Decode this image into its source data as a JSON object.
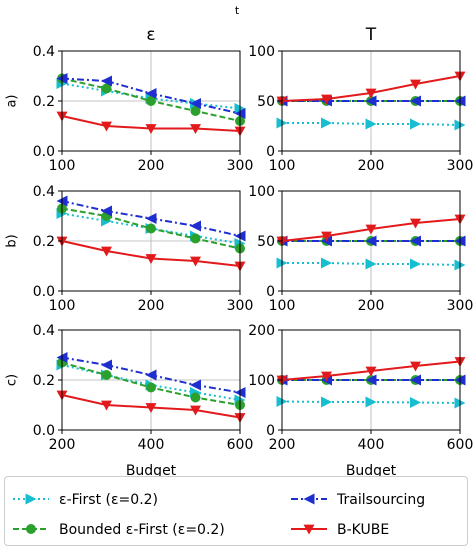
{
  "figure": {
    "top_label": "t",
    "column_titles": [
      "ε",
      "T"
    ],
    "row_labels": [
      "a)",
      "b)",
      "c)"
    ],
    "xlabel": "Budget"
  },
  "legend": {
    "entries": [
      {
        "label": "ε-First (ε=0.2)",
        "color": "#17becf",
        "marker": "triangle-right",
        "linestyle": "dotted"
      },
      {
        "label": "Trailsourcing",
        "color": "#1f2fcf",
        "marker": "triangle-left",
        "linestyle": "dashdot"
      },
      {
        "label": "Bounded ε-First (ε=0.2)",
        "color": "#2ca02c",
        "marker": "circle",
        "linestyle": "dashed"
      },
      {
        "label": "B-KUBE",
        "color": "#e31a1c",
        "marker": "triangle-down",
        "linestyle": "solid"
      }
    ]
  },
  "chart_data": [
    {
      "id": "a-eps",
      "type": "line",
      "row": 0,
      "col": 0,
      "x": [
        100,
        150,
        200,
        250,
        300
      ],
      "xlim": [
        100,
        300
      ],
      "xticks": [
        100,
        200,
        300
      ],
      "ylim": [
        0,
        0.4
      ],
      "yticks": [
        0.0,
        0.2,
        0.4
      ],
      "ytick_labels": [
        "0.0",
        "0.2",
        "0.4"
      ],
      "grid": true,
      "series": [
        {
          "name": "ε-First (ε=0.2)",
          "values": [
            0.27,
            0.24,
            0.21,
            0.19,
            0.17
          ]
        },
        {
          "name": "Bounded ε-First (ε=0.2)",
          "values": [
            0.29,
            0.25,
            0.2,
            0.16,
            0.12
          ]
        },
        {
          "name": "Trailsourcing",
          "values": [
            0.29,
            0.28,
            0.23,
            0.19,
            0.15
          ]
        },
        {
          "name": "B-KUBE",
          "values": [
            0.14,
            0.1,
            0.09,
            0.09,
            0.08
          ]
        }
      ]
    },
    {
      "id": "a-T",
      "type": "line",
      "row": 0,
      "col": 1,
      "x": [
        100,
        150,
        200,
        250,
        300
      ],
      "xlim": [
        100,
        300
      ],
      "xticks": [
        100,
        200,
        300
      ],
      "ylim": [
        0,
        100
      ],
      "yticks": [
        0,
        50,
        100
      ],
      "ytick_labels": [
        "0",
        "50",
        "100"
      ],
      "grid": true,
      "series": [
        {
          "name": "ε-First (ε=0.2)",
          "values": [
            28,
            28,
            27,
            27,
            26
          ]
        },
        {
          "name": "Bounded ε-First (ε=0.2)",
          "values": [
            50,
            50,
            50,
            50,
            50
          ]
        },
        {
          "name": "Trailsourcing",
          "values": [
            50,
            50,
            50,
            50,
            50
          ]
        },
        {
          "name": "B-KUBE",
          "values": [
            50,
            52,
            58,
            67,
            75
          ]
        }
      ]
    },
    {
      "id": "b-eps",
      "type": "line",
      "row": 1,
      "col": 0,
      "x": [
        100,
        150,
        200,
        250,
        300
      ],
      "xlim": [
        100,
        300
      ],
      "xticks": [
        100,
        200,
        300
      ],
      "ylim": [
        0,
        0.4
      ],
      "yticks": [
        0.0,
        0.2,
        0.4
      ],
      "ytick_labels": [
        "0.0",
        "0.2",
        "0.4"
      ],
      "grid": true,
      "series": [
        {
          "name": "ε-First (ε=0.2)",
          "values": [
            0.31,
            0.28,
            0.25,
            0.22,
            0.19
          ]
        },
        {
          "name": "Bounded ε-First (ε=0.2)",
          "values": [
            0.33,
            0.3,
            0.25,
            0.21,
            0.17
          ]
        },
        {
          "name": "Trailsourcing",
          "values": [
            0.36,
            0.32,
            0.29,
            0.26,
            0.22
          ]
        },
        {
          "name": "B-KUBE",
          "values": [
            0.2,
            0.16,
            0.13,
            0.12,
            0.1
          ]
        }
      ]
    },
    {
      "id": "b-T",
      "type": "line",
      "row": 1,
      "col": 1,
      "x": [
        100,
        150,
        200,
        250,
        300
      ],
      "xlim": [
        100,
        300
      ],
      "xticks": [
        100,
        200,
        300
      ],
      "ylim": [
        0,
        100
      ],
      "yticks": [
        0,
        50,
        100
      ],
      "ytick_labels": [
        "0",
        "50",
        "100"
      ],
      "grid": true,
      "series": [
        {
          "name": "ε-First (ε=0.2)",
          "values": [
            28,
            28,
            27,
            27,
            26
          ]
        },
        {
          "name": "Bounded ε-First (ε=0.2)",
          "values": [
            50,
            50,
            50,
            50,
            50
          ]
        },
        {
          "name": "Trailsourcing",
          "values": [
            50,
            50,
            50,
            50,
            50
          ]
        },
        {
          "name": "B-KUBE",
          "values": [
            50,
            55,
            62,
            68,
            72
          ]
        }
      ]
    },
    {
      "id": "c-eps",
      "type": "line",
      "row": 2,
      "col": 0,
      "x": [
        200,
        300,
        400,
        500,
        600
      ],
      "xlim": [
        200,
        600
      ],
      "xticks": [
        200,
        400,
        600
      ],
      "ylim": [
        0,
        0.4
      ],
      "yticks": [
        0.0,
        0.2,
        0.4
      ],
      "ytick_labels": [
        "0.0",
        "0.2",
        "0.4"
      ],
      "grid": true,
      "series": [
        {
          "name": "ε-First (ε=0.2)",
          "values": [
            0.26,
            0.22,
            0.18,
            0.15,
            0.12
          ]
        },
        {
          "name": "Bounded ε-First (ε=0.2)",
          "values": [
            0.27,
            0.22,
            0.17,
            0.13,
            0.1
          ]
        },
        {
          "name": "Trailsourcing",
          "values": [
            0.29,
            0.26,
            0.22,
            0.18,
            0.15
          ]
        },
        {
          "name": "B-KUBE",
          "values": [
            0.14,
            0.1,
            0.09,
            0.08,
            0.05
          ]
        }
      ]
    },
    {
      "id": "c-T",
      "type": "line",
      "row": 2,
      "col": 1,
      "x": [
        200,
        300,
        400,
        500,
        600
      ],
      "xlim": [
        200,
        600
      ],
      "xticks": [
        200,
        400,
        600
      ],
      "ylim": [
        0,
        200
      ],
      "yticks": [
        0,
        100,
        200
      ],
      "ytick_labels": [
        "0",
        "100",
        "200"
      ],
      "grid": true,
      "series": [
        {
          "name": "ε-First (ε=0.2)",
          "values": [
            57,
            56,
            56,
            55,
            54
          ]
        },
        {
          "name": "Bounded ε-First (ε=0.2)",
          "values": [
            100,
            100,
            100,
            100,
            100
          ]
        },
        {
          "name": "Trailsourcing",
          "values": [
            100,
            100,
            100,
            100,
            100
          ]
        },
        {
          "name": "B-KUBE",
          "values": [
            100,
            108,
            118,
            128,
            137
          ]
        }
      ]
    }
  ]
}
